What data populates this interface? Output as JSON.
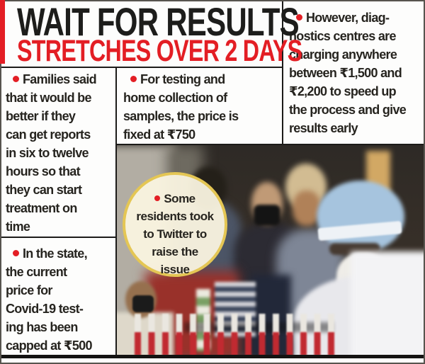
{
  "header": {
    "title": "WAIT FOR RESULTS",
    "subtitle": "STRETCHES OVER 2 DAYS"
  },
  "bullets": {
    "families": {
      "lines": [
        "Families said",
        "that it would be",
        "better if they",
        "can get reports",
        "in six to twelve",
        "hours so that",
        "they can start",
        "treatment on",
        "time"
      ]
    },
    "state_price": {
      "lines": [
        "In the state,",
        "the current",
        "price for",
        "Covid-19 test-",
        "ing has been",
        "capped at ₹500"
      ]
    },
    "testing_price": {
      "lines": [
        "For testing and",
        "home collection of",
        "samples, the price is",
        "fixed at ₹750"
      ]
    },
    "diagnostics": {
      "lines": [
        "However, diag-",
        "nostics centres are",
        "charging anywhere",
        "between ₹1,500 and",
        "₹2,200 to speed up",
        "the process and give",
        "results early"
      ]
    }
  },
  "photo_note": {
    "lines": [
      "Some",
      "residents took",
      "to Twitter to",
      "raise the",
      "issue"
    ]
  },
  "colors": {
    "accent_red": "#e31e24",
    "headline_black": "#1d1d1b",
    "circle_ring_gold": "#e4c654",
    "circle_fill_cream": "#faf4e0"
  }
}
